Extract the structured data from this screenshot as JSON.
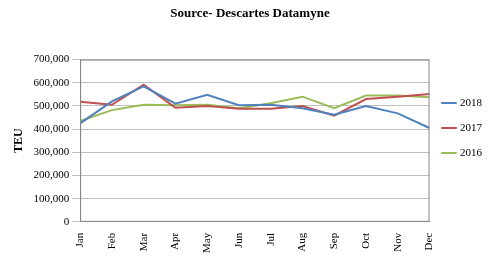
{
  "chart_data": {
    "type": "line",
    "title": "Source- Descartes Datamyne",
    "y_label": "TEU",
    "categories": [
      "Jan",
      "Feb",
      "Mar",
      "Apr",
      "May",
      "Jun",
      "Jul",
      "Aug",
      "Sep",
      "Oct",
      "Nov",
      "Dec"
    ],
    "series": [
      {
        "name": "2018",
        "color": "#4f81bd",
        "values": [
          425000,
          520000,
          585000,
          510000,
          548000,
          503000,
          505000,
          490000,
          462000,
          500000,
          468000,
          405000
        ]
      },
      {
        "name": "2017",
        "color": "#c0504d",
        "values": [
          518000,
          505000,
          592000,
          492000,
          500000,
          488000,
          488000,
          500000,
          458000,
          530000,
          540000,
          552000
        ]
      },
      {
        "name": "2016",
        "color": "#9bbb59",
        "values": [
          435000,
          482000,
          505000,
          503000,
          505000,
          490000,
          512000,
          540000,
          490000,
          545000,
          545000,
          538000
        ]
      }
    ],
    "ylim": [
      0,
      700000
    ],
    "yticks": [
      0,
      {
        "value": 100000,
        "label": "100,000"
      },
      {
        "value": 200000,
        "label": "200,000"
      },
      {
        "value": 300000,
        "label": "300,000"
      },
      {
        "value": 400000,
        "label": "400,000"
      },
      {
        "value": 500000,
        "label": "500,000"
      },
      {
        "value": 600000,
        "label": "600,000"
      },
      {
        "value": 700000,
        "label": "700,000"
      }
    ],
    "grid": true,
    "legend": "right"
  }
}
